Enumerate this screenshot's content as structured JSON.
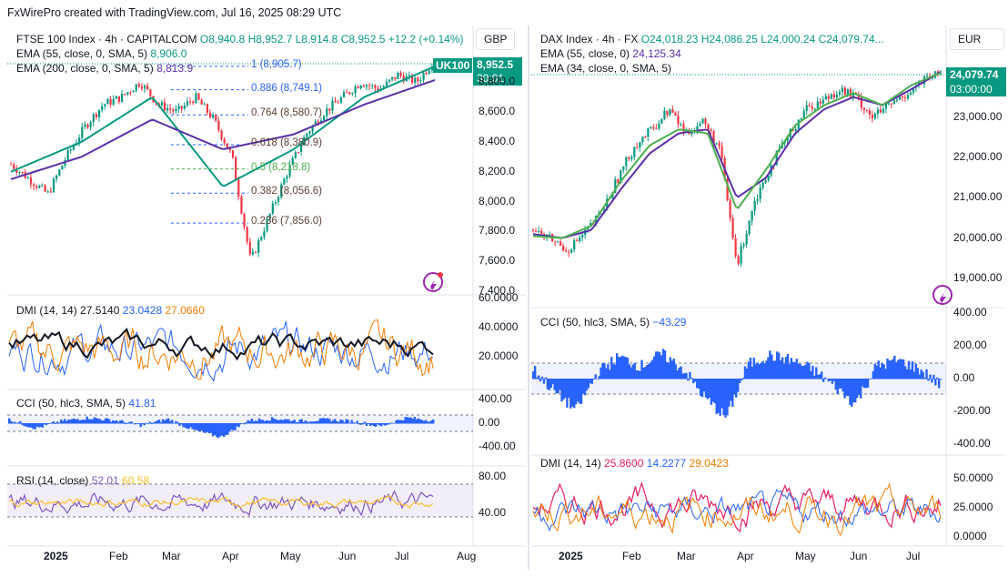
{
  "header": {
    "attribution": "FxWirePro created with TradingView.com, Jul 16, 2025 08:29 UTC"
  },
  "left": {
    "title": "FTSE 100 Index · 4h · CAPITALCOM",
    "ohlc": {
      "o": "O8,940.8",
      "h": "H8,952.7",
      "l": "L8,914.8",
      "c": "C8,952.5",
      "chg": "+12.2 (+0.14%)"
    },
    "currency": "GBP",
    "ema1": {
      "label": "EMA (55, close, 0, SMA, 5)",
      "value": "8,906.0"
    },
    "ema2": {
      "label": "EMA (200, close, 0, SMA, 5)",
      "value": "8,813.9"
    },
    "badge_symbol": "UK100",
    "badge_price": "8,952.5",
    "badge_timer": "30:01",
    "fib": [
      {
        "label": "1 (8,905.7)",
        "level": 8905.7
      },
      {
        "label": "0.886 (8,749.1)",
        "level": 8749.1
      },
      {
        "label": "0.764 (8,580.7)",
        "level": 8580.7
      },
      {
        "label": "0.618 (8,380.9)",
        "level": 8380.9
      },
      {
        "label": "0.5 (8,218.8)",
        "level": 8218.8
      },
      {
        "label": "0.382 (8,056.6)",
        "level": 8056.6
      },
      {
        "label": "0.236 (7,856.0)",
        "level": 7856.0
      }
    ],
    "price_ticks": [
      "8,800.0",
      "8,600.0",
      "8,400.0",
      "8,200.0",
      "8,000.0",
      "7,800.0",
      "7,600.0",
      "7,400.0"
    ],
    "dmi": {
      "label": "DMI (14, 14)",
      "v1": "27.5140",
      "v2": "23.0428",
      "v3": "27.0660",
      "ticks": [
        "60.0000",
        "40.0000",
        "20.0000"
      ]
    },
    "cci": {
      "label": "CCI (50, hlc3, SMA, 5)",
      "value": "41.81",
      "ticks": [
        "400.00",
        "0.00",
        "-400.00"
      ]
    },
    "rsi": {
      "label": "RSI (14, close)",
      "v1": "52.01",
      "v2": "60.58",
      "ticks": [
        "80.00",
        "40.00"
      ]
    },
    "time_ticks": [
      "2025",
      "Feb",
      "Mar",
      "Apr",
      "May",
      "Jun",
      "Jul",
      "Aug"
    ]
  },
  "right": {
    "title": "DAX Index · 4h · FX",
    "ohlc": {
      "o": "O24,018.23",
      "h": "H24,086.25",
      "l": "L24,000.24",
      "c": "C24,079.74..."
    },
    "currency": "EUR",
    "ema1": {
      "label": "EMA (55, close, 0)",
      "value": "24,125.34"
    },
    "ema2": {
      "label": "EMA (34, close, 0, SMA, 5)",
      "value": ""
    },
    "badge_price": "24,079.74",
    "badge_timer": "03:00:00",
    "price_ticks": [
      "23,000.00",
      "22,000.00",
      "21,000.00",
      "20,000.00",
      "19,000.00"
    ],
    "cci": {
      "label": "CCI (50, hlc3, SMA, 5)",
      "value": "−43.29",
      "ticks": [
        "400.00",
        "200.00",
        "0.00",
        "-200.00",
        "-400.00"
      ]
    },
    "dmi": {
      "label": "DMI (14, 14)",
      "v1": "25.8600",
      "v2": "14.2277",
      "v3": "29.0423",
      "ticks": [
        "50.0000",
        "25.0000",
        "0.0000"
      ]
    },
    "time_ticks": [
      "2025",
      "Feb",
      "Mar",
      "Apr",
      "May",
      "Jun",
      "Jul"
    ]
  },
  "colors": {
    "ema55": "#089981",
    "ema200": "#5b2fa8",
    "up": "#089981",
    "down": "#f23645",
    "fib": "#2962ff",
    "fibgreen": "#4caf50",
    "cci": "#2962ff",
    "dmi_plus": "#2962ff",
    "dmi_minus": "#f57c00",
    "adx": "#131722",
    "rsi": "#7e57c2",
    "rsi_ma": "#fbc02d"
  },
  "chart_data": [
    {
      "type": "line",
      "title": "FTSE 100 Index · 4h · CAPITALCOM",
      "x": [
        "2025",
        "Feb",
        "Mar",
        "Apr",
        "May",
        "Jun",
        "Jul"
      ],
      "series": [
        {
          "name": "FTSE 100 Index",
          "values": [
            8250,
            8500,
            8800,
            7600,
            8500,
            8800,
            8950
          ]
        },
        {
          "name": "EMA (55, close, 0, SMA, 5)",
          "values": [
            8200,
            8400,
            8700,
            8100,
            8350,
            8700,
            8906
          ]
        },
        {
          "name": "EMA (200, close, 0, SMA, 5)",
          "values": [
            8150,
            8300,
            8550,
            8350,
            8450,
            8650,
            8813.9
          ]
        }
      ],
      "ylim": [
        7400,
        8960
      ],
      "grid": true
    },
    {
      "type": "line",
      "title": "DAX Index · 4h · FX",
      "x": [
        "2025",
        "Feb",
        "Mar",
        "Apr",
        "May",
        "Jun",
        "Jul"
      ],
      "series": [
        {
          "name": "DAX Index",
          "values": [
            20000,
            21800,
            22800,
            19500,
            22900,
            23500,
            24080
          ]
        },
        {
          "name": "EMA (55, close, 0)",
          "values": [
            19900,
            21500,
            22700,
            21000,
            22800,
            23600,
            24125.34
          ]
        },
        {
          "name": "EMA (34, close, 0, SMA, 5)",
          "values": [
            19950,
            21600,
            22750,
            20800,
            22900,
            23550,
            24100
          ]
        }
      ],
      "ylim": [
        18500,
        24600
      ],
      "grid": true
    }
  ]
}
